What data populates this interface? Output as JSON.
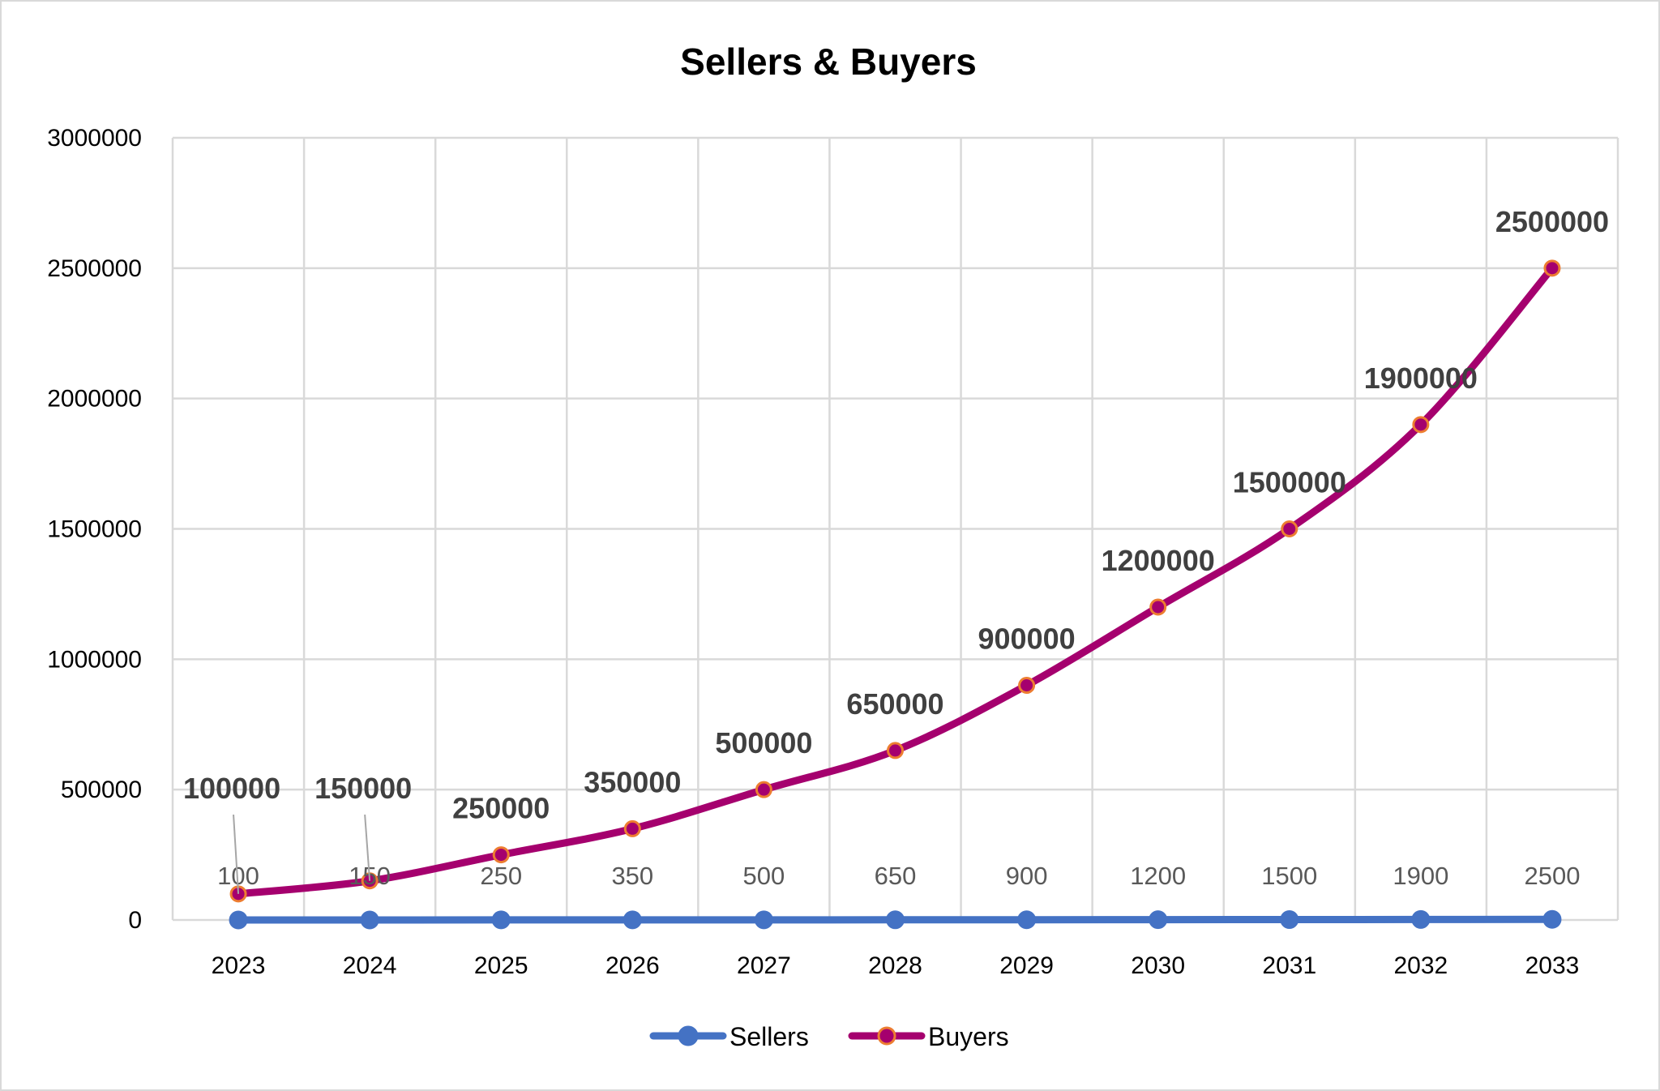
{
  "chart_data": {
    "type": "line",
    "title": "Sellers & Buyers",
    "xlabel": "",
    "ylabel": "",
    "categories": [
      "2023",
      "2024",
      "2025",
      "2026",
      "2027",
      "2028",
      "2029",
      "2030",
      "2031",
      "2032",
      "2033"
    ],
    "ylim": [
      0,
      3000000
    ],
    "yticks": [
      0,
      500000,
      1000000,
      1500000,
      2000000,
      2500000,
      3000000
    ],
    "grid": true,
    "legend": "bottom",
    "series": [
      {
        "name": "Sellers",
        "values": [
          100,
          150,
          250,
          350,
          500,
          650,
          900,
          1200,
          1500,
          1900,
          2500
        ],
        "color": "#4472C4",
        "marker_edge": "#4472C4",
        "labels": "normal"
      },
      {
        "name": "Buyers",
        "values": [
          100000,
          150000,
          250000,
          350000,
          500000,
          650000,
          900000,
          1200000,
          1500000,
          1900000,
          2500000
        ],
        "color": "#A5006E",
        "marker_edge": "#ED7D31",
        "labels": "bold"
      }
    ]
  }
}
